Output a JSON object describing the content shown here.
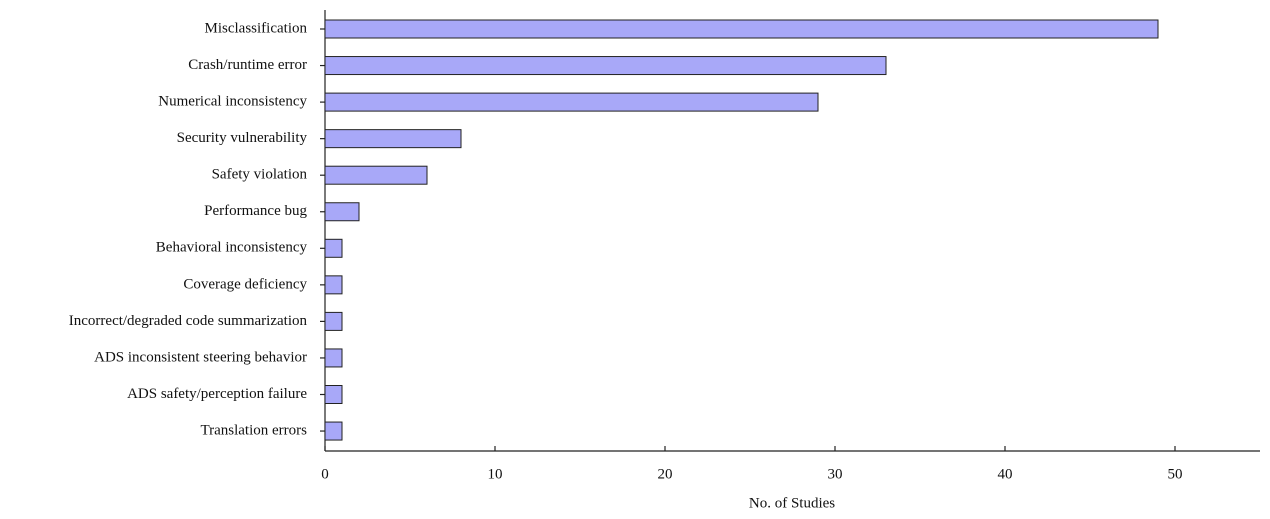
{
  "chart_data": {
    "type": "bar",
    "orientation": "horizontal",
    "x_label": "No. of Studies",
    "categories": [
      "Misclassification",
      "Crash/runtime error",
      "Numerical inconsistency",
      "Security vulnerability",
      "Safety violation",
      "Performance bug",
      "Behavioral inconsistency",
      "Coverage deficiency",
      "Incorrect/degraded code summarization",
      "ADS inconsistent steering behavior",
      "ADS safety/perception failure",
      "Translation errors"
    ],
    "values": [
      49,
      33,
      29,
      8,
      6,
      2,
      1,
      1,
      1,
      1,
      1,
      1
    ],
    "color": "#a8a8f8",
    "xlim": [
      0,
      55
    ],
    "xticks": [
      0,
      10,
      20,
      30,
      40,
      50
    ],
    "grid": false
  }
}
